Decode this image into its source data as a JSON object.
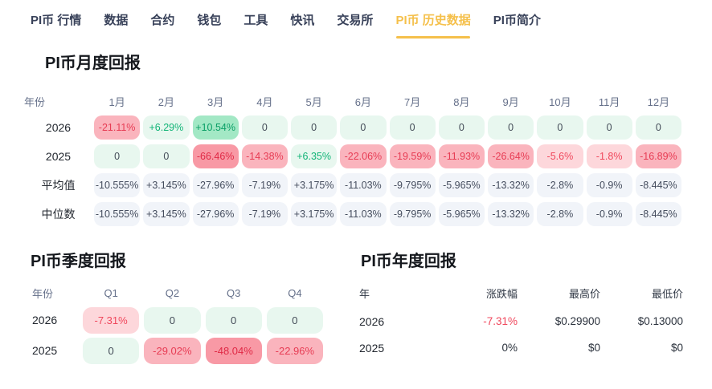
{
  "nav": {
    "items": [
      {
        "label": "PI币 行情",
        "active": false
      },
      {
        "label": "数据",
        "active": false
      },
      {
        "label": "合约",
        "active": false
      },
      {
        "label": "钱包",
        "active": false
      },
      {
        "label": "工具",
        "active": false
      },
      {
        "label": "快讯",
        "active": false
      },
      {
        "label": "交易所",
        "active": false
      },
      {
        "label": "PI币 历史数据",
        "active": true
      },
      {
        "label": "PI币简介",
        "active": false
      }
    ]
  },
  "colors": {
    "accent_yellow": "#F5C04B",
    "nav_text": "#39425A",
    "pos_text": "#12B477",
    "pos_strong_text": "#0A9F66",
    "neg_text": "#F0475C",
    "zero_text": "#434B57",
    "stat_text": "#454D5E",
    "bg_pos": "#E8F7EF",
    "bg_pos_strong": "#A3E8C5",
    "bg_neg_1": "#FDD7DB",
    "bg_neg_2": "#FAB4BD",
    "bg_neg_3": "#F899A5",
    "bg_stat": "#F1F4F9"
  },
  "monthly": {
    "title": "PI币月度回报",
    "header": [
      "年份",
      "1月",
      "2月",
      "3月",
      "4月",
      "5月",
      "6月",
      "7月",
      "8月",
      "9月",
      "10月",
      "11月",
      "12月"
    ],
    "rows": [
      {
        "label": "2026",
        "cells": [
          {
            "text": "-21.11%",
            "type": "neg-2"
          },
          {
            "text": "+6.29%",
            "type": "pos"
          },
          {
            "text": "+10.54%",
            "type": "pos-strong"
          },
          {
            "text": "0",
            "type": "zero"
          },
          {
            "text": "0",
            "type": "zero"
          },
          {
            "text": "0",
            "type": "zero"
          },
          {
            "text": "0",
            "type": "zero"
          },
          {
            "text": "0",
            "type": "zero"
          },
          {
            "text": "0",
            "type": "zero"
          },
          {
            "text": "0",
            "type": "zero"
          },
          {
            "text": "0",
            "type": "zero"
          },
          {
            "text": "0",
            "type": "zero"
          }
        ]
      },
      {
        "label": "2025",
        "cells": [
          {
            "text": "0",
            "type": "zero"
          },
          {
            "text": "0",
            "type": "zero"
          },
          {
            "text": "-66.46%",
            "type": "neg-3"
          },
          {
            "text": "-14.38%",
            "type": "neg-2"
          },
          {
            "text": "+6.35%",
            "type": "pos"
          },
          {
            "text": "-22.06%",
            "type": "neg-2"
          },
          {
            "text": "-19.59%",
            "type": "neg-2"
          },
          {
            "text": "-11.93%",
            "type": "neg-2"
          },
          {
            "text": "-26.64%",
            "type": "neg-2"
          },
          {
            "text": "-5.6%",
            "type": "neg-1"
          },
          {
            "text": "-1.8%",
            "type": "neg-1"
          },
          {
            "text": "-16.89%",
            "type": "neg-2"
          }
        ]
      },
      {
        "label": "平均值",
        "cells": [
          {
            "text": "-10.555%",
            "type": "stat"
          },
          {
            "text": "+3.145%",
            "type": "stat"
          },
          {
            "text": "-27.96%",
            "type": "stat"
          },
          {
            "text": "-7.19%",
            "type": "stat"
          },
          {
            "text": "+3.175%",
            "type": "stat"
          },
          {
            "text": "-11.03%",
            "type": "stat"
          },
          {
            "text": "-9.795%",
            "type": "stat"
          },
          {
            "text": "-5.965%",
            "type": "stat"
          },
          {
            "text": "-13.32%",
            "type": "stat"
          },
          {
            "text": "-2.8%",
            "type": "stat"
          },
          {
            "text": "-0.9%",
            "type": "stat"
          },
          {
            "text": "-8.445%",
            "type": "stat"
          }
        ]
      },
      {
        "label": "中位数",
        "cells": [
          {
            "text": "-10.555%",
            "type": "stat"
          },
          {
            "text": "+3.145%",
            "type": "stat"
          },
          {
            "text": "-27.96%",
            "type": "stat"
          },
          {
            "text": "-7.19%",
            "type": "stat"
          },
          {
            "text": "+3.175%",
            "type": "stat"
          },
          {
            "text": "-11.03%",
            "type": "stat"
          },
          {
            "text": "-9.795%",
            "type": "stat"
          },
          {
            "text": "-5.965%",
            "type": "stat"
          },
          {
            "text": "-13.32%",
            "type": "stat"
          },
          {
            "text": "-2.8%",
            "type": "stat"
          },
          {
            "text": "-0.9%",
            "type": "stat"
          },
          {
            "text": "-8.445%",
            "type": "stat"
          }
        ]
      }
    ]
  },
  "quarterly": {
    "title": "PI币季度回报",
    "header": [
      "年份",
      "Q1",
      "Q2",
      "Q3",
      "Q4"
    ],
    "rows": [
      {
        "label": "2026",
        "cells": [
          {
            "text": "-7.31%",
            "type": "neg-1"
          },
          {
            "text": "0",
            "type": "zero"
          },
          {
            "text": "0",
            "type": "zero"
          },
          {
            "text": "0",
            "type": "zero"
          }
        ]
      },
      {
        "label": "2025",
        "cells": [
          {
            "text": "0",
            "type": "zero"
          },
          {
            "text": "-29.02%",
            "type": "neg-2"
          },
          {
            "text": "-48.04%",
            "type": "neg-3"
          },
          {
            "text": "-22.96%",
            "type": "neg-2"
          }
        ]
      }
    ]
  },
  "yearly": {
    "title": "PI币年度回报",
    "header": [
      "年",
      "涨跌幅",
      "最高价",
      "最低价"
    ],
    "rows": [
      {
        "label": "2026",
        "change": "-7.31%",
        "change_negative": true,
        "high": "$0.29900",
        "low": "$0.13000"
      },
      {
        "label": "2025",
        "change": "0%",
        "change_negative": false,
        "high": "$0",
        "low": "$0"
      }
    ]
  }
}
